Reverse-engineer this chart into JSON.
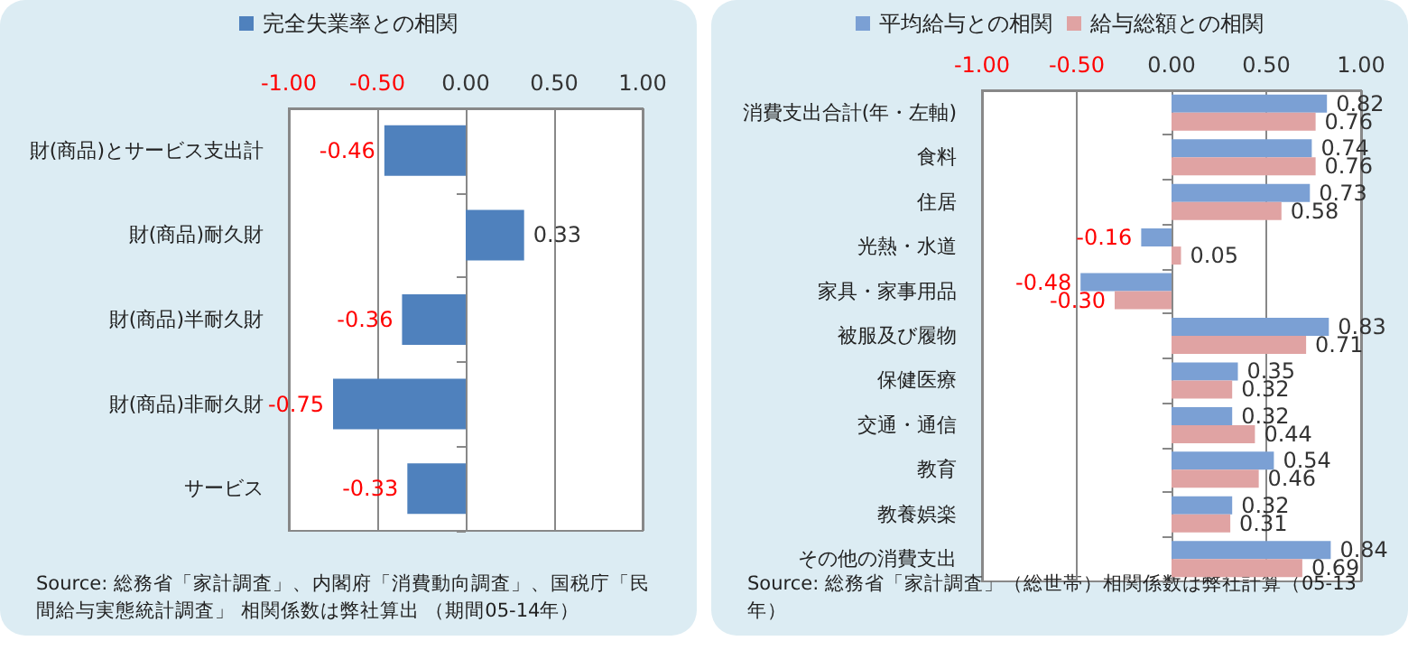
{
  "chart_data": [
    {
      "type": "bar",
      "orientation": "horizontal",
      "categories": [
        "財(商品)とサービス支出計",
        "財(商品)耐久財",
        "財(商品)半耐久財",
        "財(商品)非耐久財",
        "サービス"
      ],
      "series": [
        {
          "name": "完全失業率との相関",
          "color": "#4f81bd",
          "values": [
            -0.46,
            0.33,
            -0.36,
            -0.75,
            -0.33
          ],
          "value_labels": [
            "-0.46",
            "0.33",
            "-0.36",
            "-0.75",
            "-0.33"
          ]
        }
      ],
      "xlim": [
        -1,
        1
      ],
      "xticks": [
        {
          "value": -1,
          "label": "-1.00"
        },
        {
          "value": -0.5,
          "label": "-0.50"
        },
        {
          "value": 0,
          "label": "0.00"
        },
        {
          "value": 0.5,
          "label": "0.50"
        },
        {
          "value": 1,
          "label": "1.00"
        }
      ],
      "grid": "x",
      "legend": "top",
      "annotations": [
        "Source: 総務省「家計調査」、内閣府「消費動向調査」、国税庁「民間給与実態統計調査」 相関係数は弊社算出 （期間05-14年）"
      ]
    },
    {
      "type": "bar",
      "orientation": "horizontal",
      "categories": [
        "消費支出合計(年・左軸)",
        "食料",
        "住居",
        "光熱・水道",
        "家具・家事用品",
        "被服及び履物",
        "保健医療",
        "交通・通信",
        "教育",
        "教養娯楽",
        "その他の消費支出"
      ],
      "series": [
        {
          "name": "平均給与との相関",
          "color": "#7ba0d4",
          "values": [
            0.82,
            0.74,
            0.73,
            -0.16,
            -0.48,
            0.83,
            0.35,
            0.32,
            0.54,
            0.32,
            0.84
          ],
          "value_labels": [
            "0.82",
            "0.74",
            "0.73",
            "-0.16",
            "-0.48",
            "0.83",
            "0.35",
            "0.32",
            "0.54",
            "0.32",
            "0.84"
          ]
        },
        {
          "name": "給与総額との相関",
          "color": "#e0a3a3",
          "values": [
            0.76,
            0.76,
            0.58,
            0.05,
            -0.3,
            0.71,
            0.32,
            0.44,
            0.46,
            0.31,
            0.69
          ],
          "value_labels": [
            "0.76",
            "0.76",
            "0.58",
            "0.05",
            "-0.30",
            "0.71",
            "0.32",
            "0.44",
            "0.46",
            "0.31",
            "0.69"
          ]
        }
      ],
      "xlim": [
        -1,
        1
      ],
      "xticks": [
        {
          "value": -1,
          "label": "-1.00"
        },
        {
          "value": -0.5,
          "label": "-0.50"
        },
        {
          "value": 0,
          "label": "0.00"
        },
        {
          "value": 0.5,
          "label": "0.50"
        },
        {
          "value": 1,
          "label": "1.00"
        }
      ],
      "grid": "x",
      "legend": "top",
      "annotations": [
        "Source: 総務省「家計調査」（総世帯）相関係数は弊社計算（05-13年）"
      ]
    }
  ]
}
